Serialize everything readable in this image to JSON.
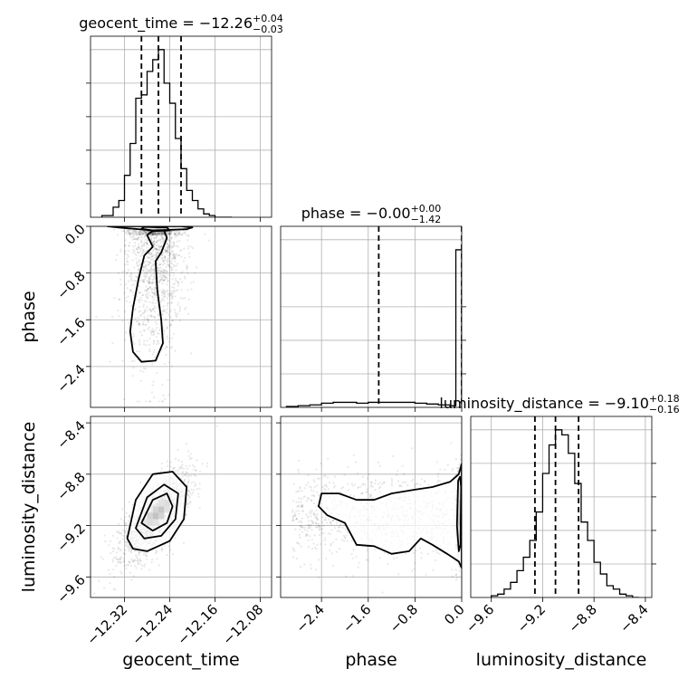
{
  "chart_data": [
    {
      "type": "histogram",
      "panel": "geocent_time-marginal",
      "title": {
        "prefix": "geocent_time = −12.26",
        "upper_err": "+0.04",
        "lower_err": "−0.03"
      },
      "xlim": [
        -12.38,
        -12.06
      ],
      "ylim": [
        0,
        1
      ],
      "quantiles": [
        -12.29,
        -12.26,
        -12.22
      ],
      "bin_edges": [
        -12.36,
        -12.35,
        -12.34,
        -12.33,
        -12.32,
        -12.31,
        -12.3,
        -12.29,
        -12.28,
        -12.27,
        -12.26,
        -12.25,
        -12.24,
        -12.23,
        -12.22,
        -12.21,
        -12.2,
        -12.19,
        -12.18,
        -12.17,
        -12.16,
        -12.15,
        -12.14,
        -12.13
      ],
      "heights": [
        0.01,
        0.01,
        0.06,
        0.1,
        0.25,
        0.44,
        0.71,
        0.73,
        0.87,
        0.94,
        1.0,
        0.8,
        0.68,
        0.47,
        0.29,
        0.16,
        0.1,
        0.05,
        0.02,
        0.01,
        0.0,
        0.0,
        0.0
      ]
    },
    {
      "type": "histogram",
      "panel": "phase-marginal",
      "title": {
        "prefix": "phase = −0.00",
        "upper_err": "+0.00",
        "lower_err": "−1.42"
      },
      "xlim": [
        -3.1,
        0.0
      ],
      "ylim": [
        0,
        1
      ],
      "quantiles": [
        -1.42,
        0.0
      ],
      "bin_edges": [
        -3.0,
        -2.8,
        -2.6,
        -2.4,
        -2.2,
        -2.0,
        -1.8,
        -1.6,
        -1.4,
        -1.2,
        -1.0,
        -0.8,
        -0.6,
        -0.4,
        -0.2,
        -0.1,
        0.0
      ],
      "heights": [
        0.005,
        0.01,
        0.015,
        0.025,
        0.03,
        0.03,
        0.025,
        0.03,
        0.03,
        0.03,
        0.03,
        0.025,
        0.02,
        0.015,
        0.01,
        0.94
      ]
    },
    {
      "type": "histogram",
      "panel": "luminosity_distance-marginal",
      "title": {
        "prefix": "luminosity_distance = −9.10",
        "upper_err": "+0.18",
        "lower_err": "−0.16"
      },
      "xlim": [
        -9.76,
        -8.35
      ],
      "ylim": [
        0,
        1
      ],
      "quantiles": [
        -9.26,
        -9.1,
        -8.92
      ],
      "bin_edges": [
        -9.6,
        -9.55,
        -9.5,
        -9.45,
        -9.4,
        -9.35,
        -9.3,
        -9.25,
        -9.2,
        -9.15,
        -9.1,
        -9.05,
        -9.0,
        -8.95,
        -8.9,
        -8.85,
        -8.8,
        -8.75,
        -8.7,
        -8.65,
        -8.6,
        -8.55,
        -8.5,
        -8.45
      ],
      "heights": [
        0.01,
        0.02,
        0.05,
        0.09,
        0.16,
        0.24,
        0.34,
        0.51,
        0.74,
        0.91,
        1.0,
        0.97,
        0.86,
        0.68,
        0.45,
        0.34,
        0.21,
        0.14,
        0.07,
        0.05,
        0.02,
        0.01,
        0.0
      ]
    },
    {
      "type": "scatter",
      "panel": "phase-vs-geocent_time",
      "xlabel": "",
      "ylabel": "phase",
      "xlim": [
        -12.38,
        -12.06
      ],
      "ylim": [
        -3.1,
        0.0
      ],
      "contour_levels": [
        [
          [
            -12.33,
            -0.02
          ],
          [
            -12.27,
            -0.07
          ],
          [
            -12.24,
            -0.06
          ],
          [
            -12.21,
            -0.05
          ],
          [
            -12.2,
            -0.02
          ],
          [
            -12.22,
            0.0
          ],
          [
            -12.35,
            0.0
          ]
        ],
        [
          [
            -12.29,
            -0.04
          ],
          [
            -12.265,
            -0.08
          ],
          [
            -12.24,
            -0.07
          ],
          [
            -12.245,
            -0.02
          ],
          [
            -12.285,
            -0.01
          ]
        ],
        [
          [
            -12.28,
            -0.15
          ],
          [
            -12.27,
            -0.35
          ],
          [
            -12.285,
            -0.5
          ],
          [
            -12.295,
            -0.9
          ],
          [
            -12.305,
            -1.4
          ],
          [
            -12.31,
            -1.8
          ],
          [
            -12.305,
            -2.15
          ],
          [
            -12.29,
            -2.32
          ],
          [
            -12.265,
            -2.3
          ],
          [
            -12.252,
            -2.0
          ],
          [
            -12.255,
            -1.6
          ],
          [
            -12.262,
            -1.1
          ],
          [
            -12.265,
            -0.6
          ],
          [
            -12.255,
            -0.45
          ],
          [
            -12.245,
            -0.2
          ],
          [
            -12.25,
            -0.07
          ],
          [
            -12.27,
            -0.08
          ]
        ]
      ],
      "density_core": [
        -12.26,
        -0.03
      ],
      "spread": [
        0.035,
        0.9
      ]
    },
    {
      "type": "scatter",
      "panel": "luminosity_distance-vs-geocent_time",
      "xlabel": "geocent_time",
      "ylabel": "luminosity_distance",
      "xlim": [
        -12.38,
        -12.06
      ],
      "ylim": [
        -9.76,
        -8.35
      ],
      "contour_levels": [
        [
          [
            -12.315,
            -9.3
          ],
          [
            -12.3,
            -9.0
          ],
          [
            -12.27,
            -8.8
          ],
          [
            -12.235,
            -8.78
          ],
          [
            -12.21,
            -8.9
          ],
          [
            -12.215,
            -9.15
          ],
          [
            -12.24,
            -9.32
          ],
          [
            -12.28,
            -9.4
          ],
          [
            -12.305,
            -9.38
          ]
        ],
        [
          [
            -12.3,
            -9.22
          ],
          [
            -12.28,
            -8.98
          ],
          [
            -12.25,
            -8.88
          ],
          [
            -12.225,
            -8.95
          ],
          [
            -12.23,
            -9.15
          ],
          [
            -12.255,
            -9.28
          ],
          [
            -12.285,
            -9.3
          ]
        ],
        [
          [
            -12.29,
            -9.18
          ],
          [
            -12.27,
            -9.0
          ],
          [
            -12.245,
            -8.95
          ],
          [
            -12.235,
            -9.05
          ],
          [
            -12.245,
            -9.18
          ],
          [
            -12.27,
            -9.24
          ]
        ]
      ],
      "density_core": [
        -12.265,
        -9.12
      ],
      "spread": [
        0.035,
        0.2
      ]
    },
    {
      "type": "scatter",
      "panel": "luminosity_distance-vs-phase",
      "xlabel": "phase",
      "ylabel": "",
      "xlim": [
        -3.1,
        0.0
      ],
      "ylim": [
        -9.76,
        -8.35
      ],
      "contour_levels": [
        [
          [
            -2.4,
            -8.95
          ],
          [
            -2.1,
            -8.95
          ],
          [
            -1.8,
            -9.0
          ],
          [
            -1.5,
            -9.0
          ],
          [
            -1.2,
            -8.95
          ],
          [
            -0.8,
            -8.92
          ],
          [
            -0.5,
            -8.9
          ],
          [
            -0.2,
            -8.86
          ],
          [
            -0.05,
            -8.8
          ],
          [
            0.0,
            -8.72
          ],
          [
            0.0,
            -9.53
          ],
          [
            -0.05,
            -9.48
          ],
          [
            -0.25,
            -9.42
          ],
          [
            -0.5,
            -9.35
          ],
          [
            -0.7,
            -9.3
          ],
          [
            -0.9,
            -9.4
          ],
          [
            -1.2,
            -9.42
          ],
          [
            -1.5,
            -9.36
          ],
          [
            -1.8,
            -9.35
          ],
          [
            -2.0,
            -9.18
          ],
          [
            -2.3,
            -9.12
          ],
          [
            -2.45,
            -9.05
          ]
        ],
        [
          [
            -0.06,
            -8.85
          ],
          [
            -0.03,
            -8.82
          ],
          [
            -0.01,
            -8.9
          ],
          [
            -0.02,
            -9.35
          ],
          [
            -0.05,
            -9.4
          ],
          [
            -0.08,
            -9.2
          ]
        ]
      ],
      "density_core": [
        -0.01,
        -9.12
      ],
      "spread": [
        0.8,
        0.2
      ]
    }
  ],
  "axes": {
    "geocent_time": {
      "label": "geocent_time",
      "ticks": [
        -12.32,
        -12.24,
        -12.16,
        -12.08
      ],
      "tick_labels": [
        "−12.32",
        "−12.24",
        "−12.16",
        "−12.08"
      ]
    },
    "phase": {
      "label": "phase",
      "ticks": [
        -2.4,
        -1.6,
        -0.8,
        0.0
      ],
      "tick_labels": [
        "−2.4",
        "−1.6",
        "−0.8",
        "0.0"
      ]
    },
    "luminosity_distance": {
      "label": "luminosity_distance",
      "ticks": [
        -9.6,
        -9.2,
        -8.8,
        -8.4
      ],
      "tick_labels": [
        "−9.6",
        "−9.2",
        "−8.8",
        "−8.4"
      ]
    }
  },
  "grid": true,
  "colors": {
    "line": "#000000",
    "grid": "#b0b0b0",
    "scatter": "#000000"
  }
}
